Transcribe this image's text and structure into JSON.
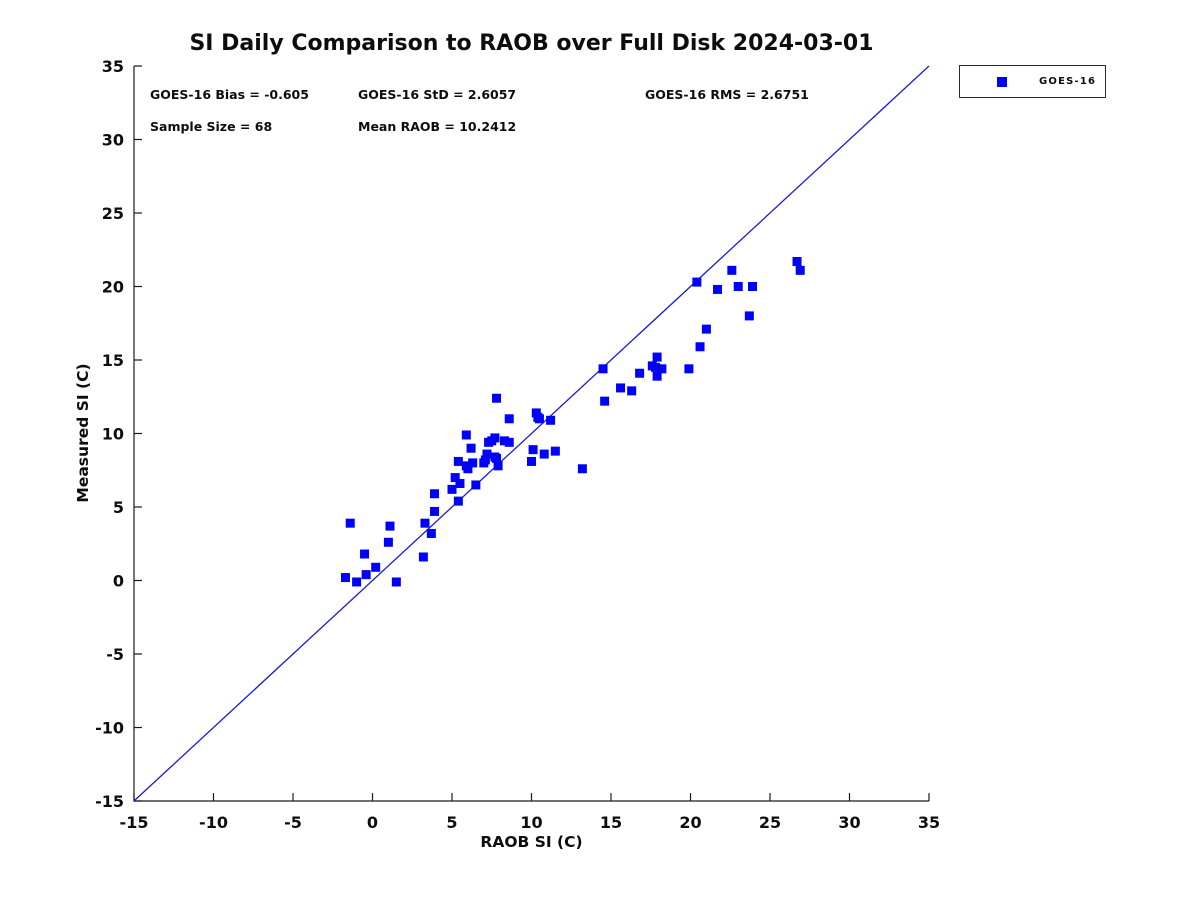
{
  "chart_data": {
    "type": "scatter",
    "title": "SI Daily Comparison to RAOB over Full Disk 2024-03-01",
    "xlabel": "RAOB SI (C)",
    "ylabel": "Measured SI (C)",
    "xlim": [
      -15,
      35
    ],
    "ylim": [
      -15,
      35
    ],
    "xticks": [
      -15,
      -10,
      -5,
      0,
      5,
      10,
      15,
      20,
      25,
      30,
      35
    ],
    "yticks": [
      -15,
      -10,
      -5,
      0,
      5,
      10,
      15,
      20,
      25,
      30,
      35
    ],
    "grid": false,
    "box": "left-bottom-only",
    "legend_position": "outside-top-right",
    "annotations": {
      "bias": "GOES-16 Bias = -0.605",
      "std": "GOES-16 StD = 2.6057",
      "rms": "GOES-16 RMS = 2.6751",
      "sample_size": "Sample Size = 68",
      "mean_raob": "Mean RAOB = 10.2412"
    },
    "reference_line": {
      "name": "identity-line",
      "from": [
        -15,
        -15
      ],
      "to": [
        35,
        35
      ],
      "color": "#1a1ad9",
      "width": 1.3
    },
    "series": [
      {
        "name": "GOES-16",
        "marker": "square",
        "color": "#0000ff",
        "marker_size_px": 9,
        "points": [
          [
            -1.7,
            0.2
          ],
          [
            -1.4,
            3.9
          ],
          [
            -1.0,
            -0.1
          ],
          [
            -0.5,
            1.8
          ],
          [
            -0.4,
            0.4
          ],
          [
            0.2,
            0.9
          ],
          [
            1.0,
            2.6
          ],
          [
            1.1,
            3.7
          ],
          [
            1.5,
            -0.1
          ],
          [
            3.2,
            1.6
          ],
          [
            3.3,
            3.9
          ],
          [
            3.7,
            3.2
          ],
          [
            3.9,
            4.7
          ],
          [
            3.9,
            5.9
          ],
          [
            5.0,
            6.2
          ],
          [
            5.2,
            7.0
          ],
          [
            5.4,
            5.4
          ],
          [
            5.4,
            8.1
          ],
          [
            5.5,
            6.6
          ],
          [
            5.9,
            7.8
          ],
          [
            5.9,
            9.9
          ],
          [
            6.0,
            7.6
          ],
          [
            6.2,
            9.0
          ],
          [
            6.3,
            8.0
          ],
          [
            6.5,
            6.5
          ],
          [
            7.0,
            8.0
          ],
          [
            7.1,
            8.2
          ],
          [
            7.2,
            8.6
          ],
          [
            7.3,
            9.4
          ],
          [
            7.5,
            9.5
          ],
          [
            7.7,
            9.7
          ],
          [
            7.7,
            8.4
          ],
          [
            7.8,
            8.3
          ],
          [
            7.8,
            12.4
          ],
          [
            7.9,
            7.8
          ],
          [
            8.3,
            9.5
          ],
          [
            8.6,
            9.4
          ],
          [
            8.6,
            11.0
          ],
          [
            10.0,
            8.1
          ],
          [
            10.1,
            8.9
          ],
          [
            10.3,
            11.4
          ],
          [
            10.4,
            11.1
          ],
          [
            10.5,
            11.0
          ],
          [
            10.8,
            8.6
          ],
          [
            11.2,
            10.9
          ],
          [
            11.5,
            8.8
          ],
          [
            13.2,
            7.6
          ],
          [
            14.5,
            14.4
          ],
          [
            14.6,
            12.2
          ],
          [
            15.6,
            13.1
          ],
          [
            16.3,
            12.9
          ],
          [
            16.8,
            14.1
          ],
          [
            17.6,
            14.6
          ],
          [
            17.8,
            14.5
          ],
          [
            17.9,
            15.2
          ],
          [
            17.9,
            13.9
          ],
          [
            18.2,
            14.4
          ],
          [
            19.9,
            14.4
          ],
          [
            20.4,
            20.3
          ],
          [
            20.6,
            15.9
          ],
          [
            21.0,
            17.1
          ],
          [
            21.7,
            19.8
          ],
          [
            22.6,
            21.1
          ],
          [
            23.0,
            20.0
          ],
          [
            23.7,
            18.0
          ],
          [
            23.9,
            20.0
          ],
          [
            26.7,
            21.7
          ],
          [
            26.9,
            21.1
          ]
        ]
      }
    ],
    "colors": {
      "marker": "#0000ff",
      "reference_line": "#1a1ad9",
      "axis": "#1a1a1a",
      "text": "#0d0d0d",
      "background": "#ffffff"
    }
  }
}
